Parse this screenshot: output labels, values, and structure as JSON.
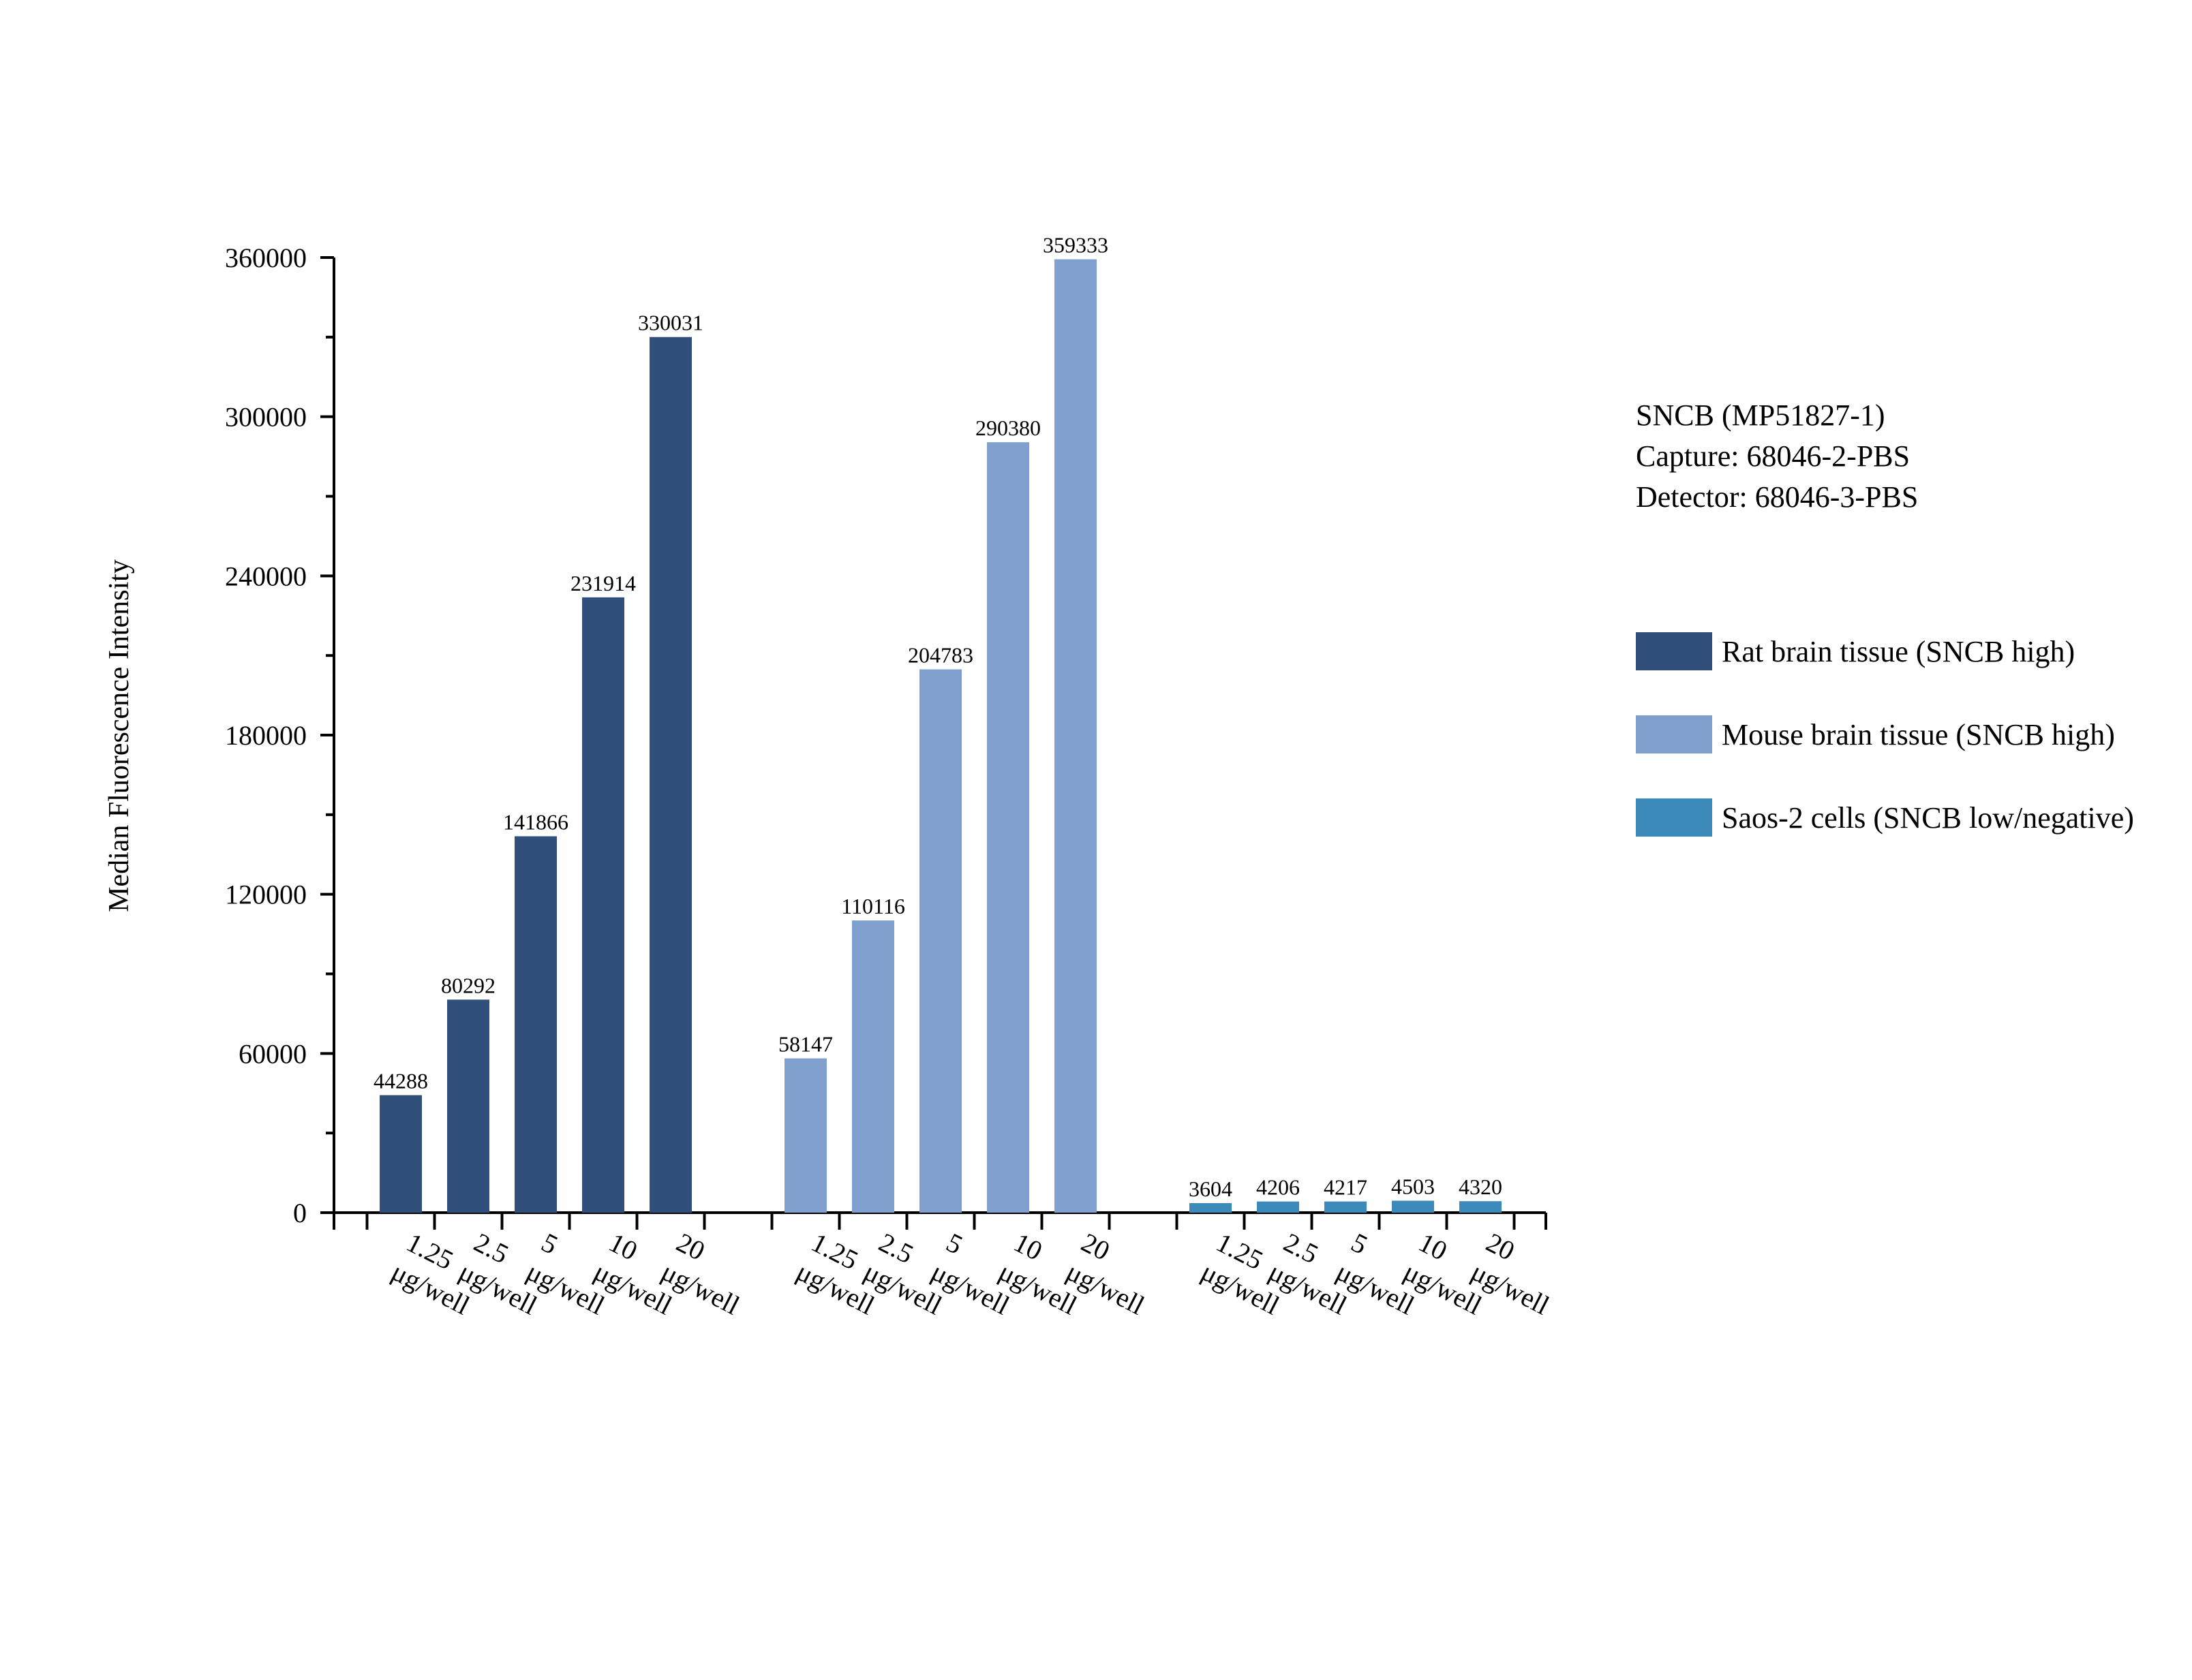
{
  "chart_data": {
    "type": "bar",
    "title": "",
    "xlabel": "",
    "ylabel": "Median Fluorescence Intensity",
    "ylim": [
      0,
      360000
    ],
    "yticks": [
      "0",
      "60000",
      "120000",
      "180000",
      "240000",
      "300000",
      "360000"
    ],
    "categories": [
      "1.25 μg/well",
      "2.5 μg/well",
      "5 μg/well",
      "10 μg/well",
      "20 μg/well"
    ],
    "grid": false,
    "legend_position": "right",
    "series": [
      {
        "name": "Rat brain tissue (SNCB high)",
        "color": "#304f7a",
        "values": [
          44288,
          80292,
          141866,
          231914,
          330031
        ],
        "labels": [
          "44288",
          "80292",
          "141866",
          "231914",
          "330031"
        ]
      },
      {
        "name": "Mouse brain tissue (SNCB high)",
        "color": "#7f9fcd",
        "values": [
          58147,
          110116,
          204783,
          290380,
          359333
        ],
        "labels": [
          "58147",
          "110116",
          "204783",
          "290380",
          "359333"
        ]
      },
      {
        "name": "Saos-2 cells (SNCB low/negative)",
        "color": "#3c8aba",
        "values": [
          3604,
          4206,
          4217,
          4503,
          4320
        ],
        "labels": [
          "3604",
          "4206",
          "4217",
          "4503",
          "4320"
        ]
      }
    ]
  },
  "info": {
    "line1": "SNCB (MP51827-1)",
    "line2": "Capture: 68046-2-PBS",
    "line3": "Detector: 68046-3-PBS"
  }
}
